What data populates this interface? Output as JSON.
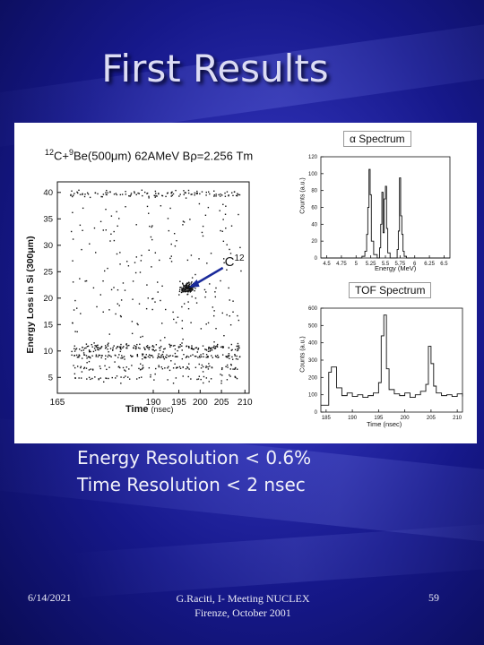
{
  "slide": {
    "title": "First Results",
    "resolution_lines": [
      "Energy Resolution < 0.6%",
      "Time Resolution < 2 nsec"
    ],
    "footer": {
      "date": "6/14/2021",
      "center": "G.Raciti, I- Meeting NUCLEX Firenze, October 2001",
      "page": "59"
    },
    "colors": {
      "background": "#2a2cae",
      "title": "#dcdcf4",
      "text": "#f2f2fa"
    }
  },
  "chart_data": [
    {
      "type": "scatter",
      "title_parts": {
        "sup1": "12",
        "mid": "C+",
        "sup2": "9",
        "rest": "Be(500μm) 62AMeV Bρ=2.256 Tm"
      },
      "xlabel": "Time",
      "xlabel_unit": "(nsec)",
      "ylabel": "Energy Loss in Si (300μm)",
      "xlim": [
        165,
        210
      ],
      "ylim": [
        2,
        42
      ],
      "xticks": [
        "165",
        "190",
        "195",
        "200",
        "205",
        "210"
      ],
      "yticks": [
        "5",
        "10",
        "15",
        "20",
        "25",
        "30",
        "35",
        "40"
      ],
      "annotation": {
        "text": "C",
        "sup": "12",
        "points_to": [
          195,
          22
        ]
      },
      "clusters": [
        {
          "name": "C12 locus",
          "x_center": 195.5,
          "y_center": 22,
          "x_spread": 1.4,
          "y_spread": 0.8,
          "count": 140
        },
        {
          "name": "upper band",
          "x_range": [
            168,
            208
          ],
          "y_center": 39.8,
          "y_spread": 0.5,
          "count": 120
        },
        {
          "name": "band 11",
          "x_range": [
            168,
            208
          ],
          "y_center": 10.7,
          "y_spread": 0.6,
          "count": 170
        },
        {
          "name": "band 9",
          "x_range": [
            168,
            208
          ],
          "y_center": 9.1,
          "y_spread": 0.4,
          "count": 130
        },
        {
          "name": "band 7",
          "x_range": [
            168,
            208
          ],
          "y_center": 7.0,
          "y_spread": 0.4,
          "count": 70
        },
        {
          "name": "band 5",
          "x_range": [
            168,
            208
          ],
          "y_center": 5.0,
          "y_spread": 0.3,
          "count": 40
        },
        {
          "name": "diffuse",
          "x_range": [
            168,
            208
          ],
          "y_range": [
            4,
            38
          ],
          "count": 260
        }
      ]
    },
    {
      "type": "line",
      "title": "α Spectrum",
      "xlabel": "Energy (MeV)",
      "ylabel": "Counts (a.u.)",
      "xlim": [
        4.4,
        6.6
      ],
      "ylim": [
        0,
        120
      ],
      "xticks": [
        "4.5",
        "4.75",
        "5",
        "5.25",
        "5.5",
        "5.75",
        "6",
        "6.25",
        "6.5"
      ],
      "yticks": [
        "0",
        "20",
        "40",
        "60",
        "80",
        "100",
        "120"
      ],
      "x": [
        4.4,
        5.0,
        5.1,
        5.15,
        5.18,
        5.2,
        5.22,
        5.24,
        5.26,
        5.3,
        5.36,
        5.4,
        5.42,
        5.44,
        5.46,
        5.48,
        5.5,
        5.52,
        5.54,
        5.58,
        5.66,
        5.7,
        5.72,
        5.74,
        5.76,
        5.78,
        5.8,
        5.82,
        5.86,
        6.0,
        6.6
      ],
      "y": [
        0,
        0,
        2,
        8,
        28,
        60,
        105,
        75,
        20,
        4,
        0,
        12,
        40,
        78,
        30,
        70,
        85,
        35,
        6,
        0,
        0,
        10,
        32,
        95,
        50,
        28,
        8,
        2,
        0,
        0,
        0
      ]
    },
    {
      "type": "line",
      "title": "TOF Spectrum",
      "xlabel": "Time (nsec)",
      "ylabel": "Counts (a.u.)",
      "xlim": [
        184,
        211
      ],
      "ylim": [
        0,
        600
      ],
      "xticks": [
        "185",
        "190",
        "195",
        "200",
        "205",
        "210"
      ],
      "yticks": [
        "0",
        "100",
        "200",
        "300",
        "400",
        "500",
        "600"
      ],
      "x": [
        184,
        185,
        185.5,
        186,
        187,
        188,
        189,
        190,
        191,
        192,
        193,
        194,
        195,
        195.5,
        196,
        196.5,
        197,
        198,
        199,
        200,
        201,
        202,
        203,
        204,
        204.5,
        205,
        205.5,
        206,
        207,
        208,
        209,
        210,
        211
      ],
      "y": [
        40,
        40,
        230,
        260,
        140,
        95,
        110,
        90,
        100,
        85,
        95,
        110,
        170,
        440,
        560,
        250,
        130,
        105,
        95,
        110,
        85,
        100,
        120,
        160,
        380,
        280,
        150,
        110,
        95,
        100,
        90,
        105,
        90
      ]
    }
  ]
}
